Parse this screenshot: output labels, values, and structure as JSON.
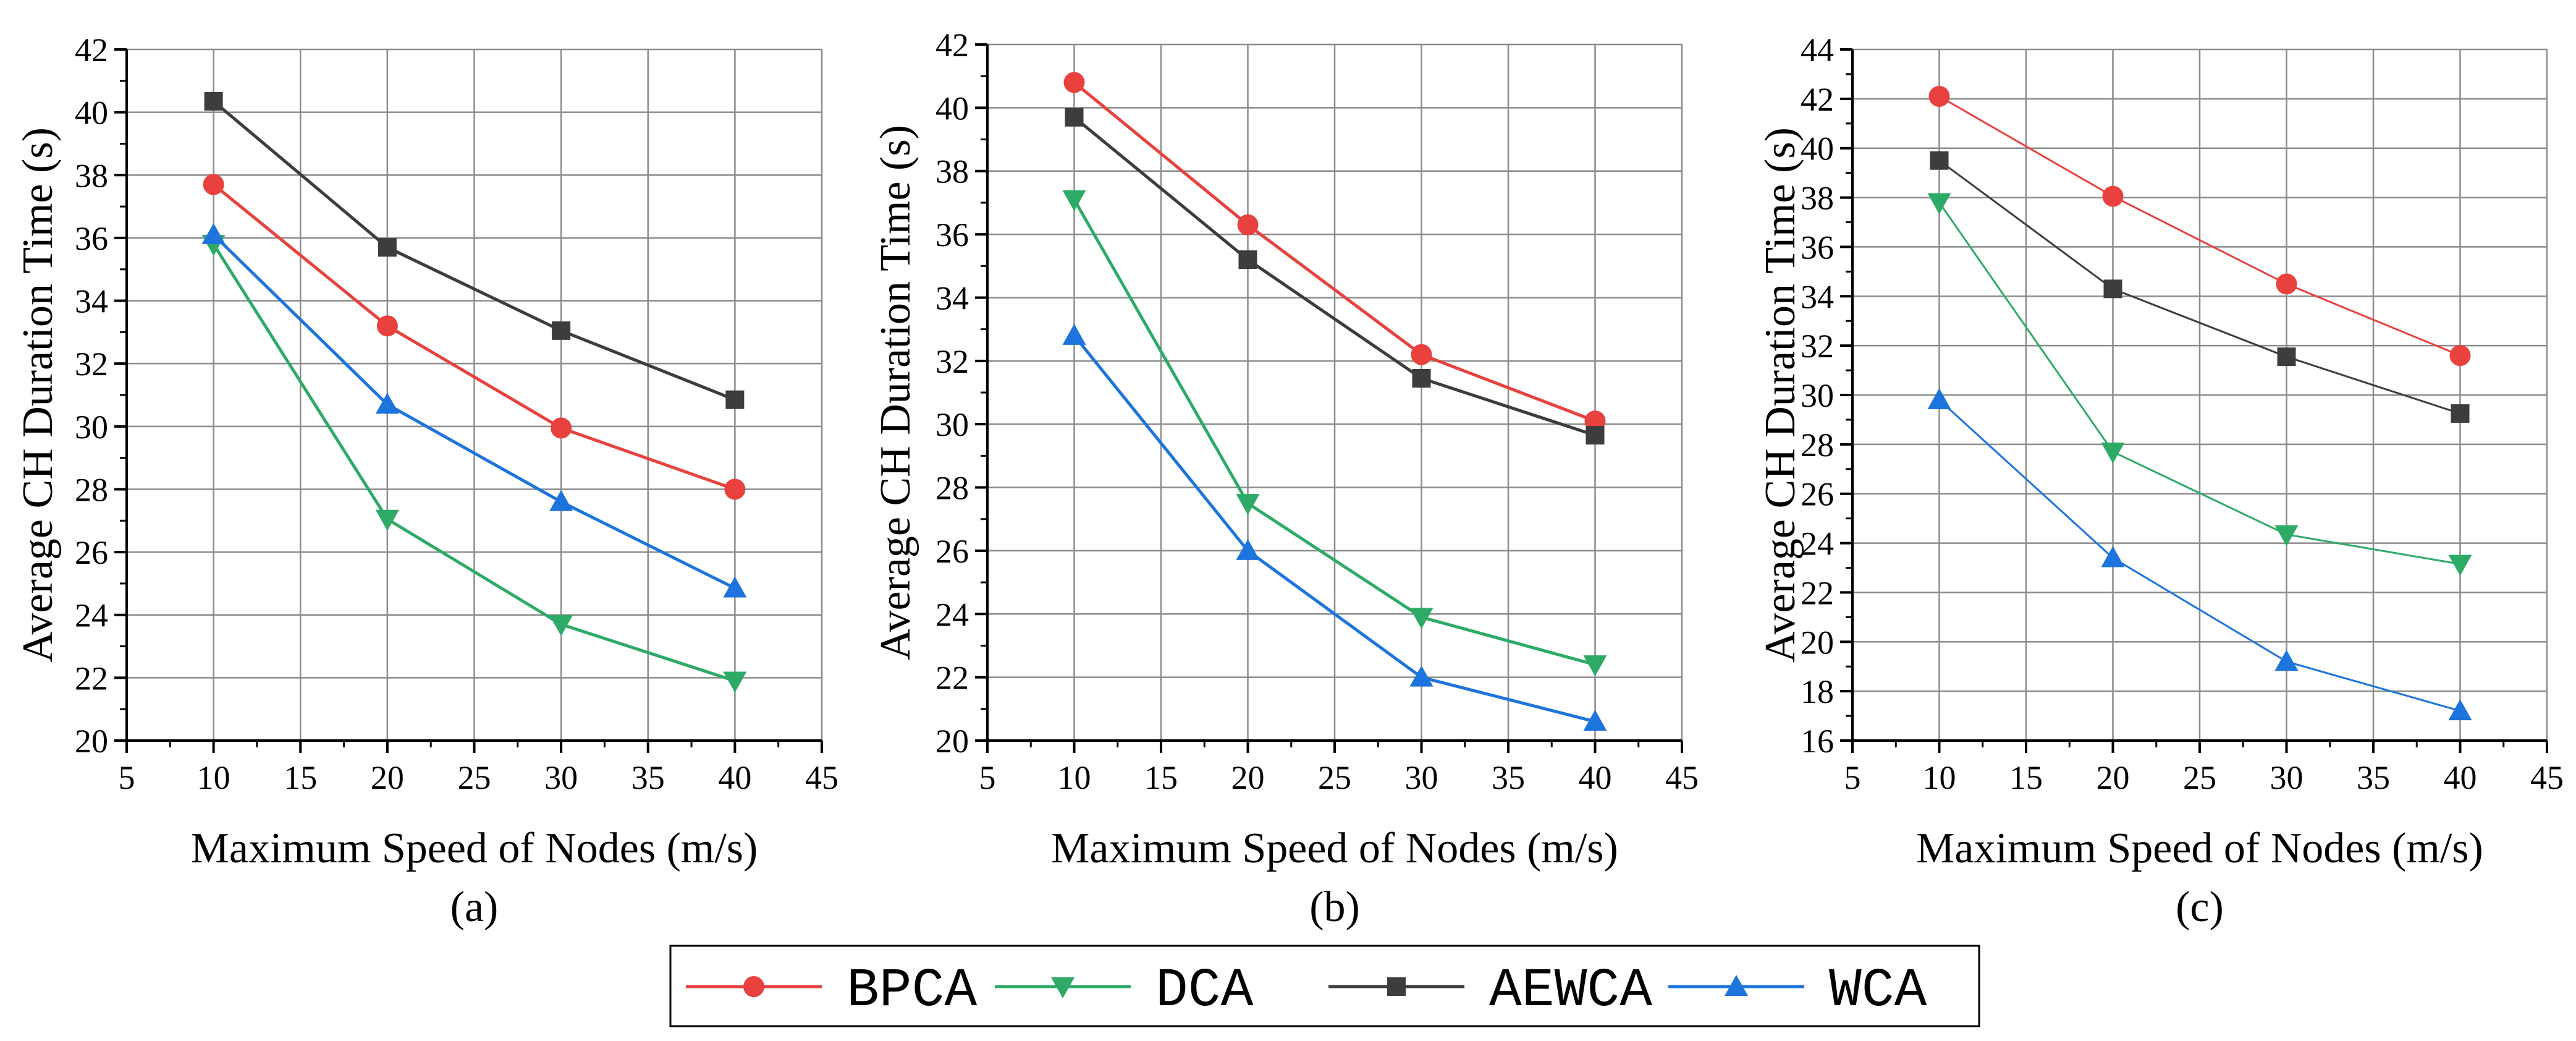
{
  "chart_data": [
    {
      "type": "line",
      "panel_label": "(a)",
      "xlabel": "Maximum Speed of Nodes (m/s)",
      "ylabel": "Average CH  Duration  Time (s)",
      "xlim": [
        5,
        45
      ],
      "ylim": [
        20,
        42
      ],
      "xticks": [
        5,
        10,
        15,
        20,
        25,
        30,
        35,
        40,
        45
      ],
      "yticks": [
        20,
        22,
        24,
        26,
        28,
        30,
        32,
        34,
        36,
        38,
        40,
        42
      ],
      "x": [
        10,
        20,
        30,
        40
      ],
      "grid": true,
      "series": [
        {
          "name": "BPCA",
          "values": [
            37.7,
            33.2,
            29.95,
            28.0
          ]
        },
        {
          "name": "DCA",
          "values": [
            35.8,
            27.05,
            23.7,
            21.9
          ]
        },
        {
          "name": "AEWCA",
          "values": [
            40.35,
            35.7,
            33.05,
            30.85
          ]
        },
        {
          "name": "WCA",
          "values": [
            36.1,
            30.7,
            27.6,
            24.85
          ]
        }
      ]
    },
    {
      "type": "line",
      "panel_label": "(b)",
      "xlabel": "Maximum Speed of Nodes (m/s)",
      "ylabel": "Average CH Duration  Time (s)",
      "xlim": [
        5,
        45
      ],
      "ylim": [
        20,
        42
      ],
      "xticks": [
        5,
        10,
        15,
        20,
        25,
        30,
        35,
        40,
        45
      ],
      "yticks": [
        20,
        22,
        24,
        26,
        28,
        30,
        32,
        34,
        36,
        38,
        40,
        42
      ],
      "x": [
        10,
        20,
        30,
        40
      ],
      "grid": true,
      "series": [
        {
          "name": "BPCA",
          "values": [
            40.8,
            36.3,
            32.2,
            30.1
          ]
        },
        {
          "name": "DCA",
          "values": [
            37.1,
            27.5,
            23.9,
            22.4
          ]
        },
        {
          "name": "AEWCA",
          "values": [
            39.7,
            35.2,
            31.45,
            29.65
          ]
        },
        {
          "name": "WCA",
          "values": [
            32.8,
            26.0,
            22.0,
            20.6
          ]
        }
      ]
    },
    {
      "type": "line",
      "panel_label": "(c)",
      "xlabel": "Maximum Speed of Nodes (m/s)",
      "ylabel": "Average CH Duration Time (s)",
      "xlim": [
        5,
        45
      ],
      "ylim": [
        16,
        44
      ],
      "xticks": [
        5,
        10,
        15,
        20,
        25,
        30,
        35,
        40,
        45
      ],
      "yticks": [
        16,
        18,
        20,
        22,
        24,
        26,
        28,
        30,
        32,
        34,
        36,
        38,
        40,
        42,
        44
      ],
      "x": [
        10,
        20,
        30,
        40
      ],
      "grid": true,
      "series": [
        {
          "name": "BPCA",
          "values": [
            42.1,
            38.05,
            34.5,
            31.6
          ]
        },
        {
          "name": "DCA",
          "values": [
            37.8,
            27.7,
            24.35,
            23.15
          ]
        },
        {
          "name": "AEWCA",
          "values": [
            39.5,
            34.3,
            31.55,
            29.25
          ]
        },
        {
          "name": "WCA",
          "values": [
            29.8,
            23.4,
            19.2,
            17.2
          ]
        }
      ]
    }
  ],
  "legend": {
    "placement": "bottom-center",
    "entries": [
      {
        "name": "BPCA",
        "color": "#e8413e",
        "marker": "circle"
      },
      {
        "name": "DCA",
        "color": "#2eaa67",
        "marker": "triangle-down"
      },
      {
        "name": "AEWCA",
        "color": "#3d3d3d",
        "marker": "square"
      },
      {
        "name": "WCA",
        "color": "#1c74dc",
        "marker": "triangle-up"
      }
    ]
  }
}
